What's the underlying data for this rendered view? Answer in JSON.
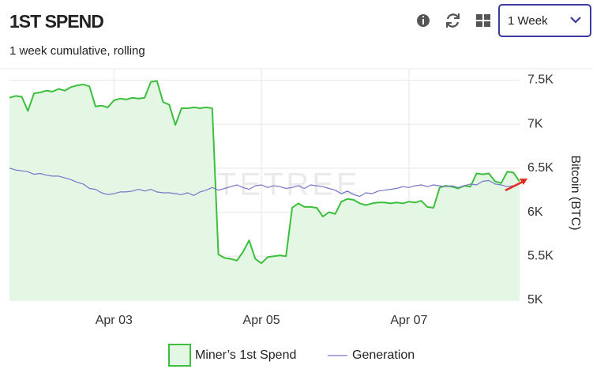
{
  "chart_data": {
    "type": "line",
    "title": "1ST SPEND",
    "subtitle": "1 week cumulative, rolling",
    "range_selector": "1 Week",
    "watermark": "BYTETREE",
    "y_label": "Bitcoin (BTC)",
    "y_axis_side": "right",
    "grid": true,
    "ylim": [
      5000,
      7620
    ],
    "yticks": [
      {
        "value": 5000,
        "label": "5K"
      },
      {
        "value": 5500,
        "label": "5.5K"
      },
      {
        "value": 6000,
        "label": "6K"
      },
      {
        "value": 6500,
        "label": "6.5K"
      },
      {
        "value": 7000,
        "label": "7K"
      },
      {
        "value": 7500,
        "label": "7.5K"
      }
    ],
    "categories": [
      null,
      null,
      null,
      null,
      null,
      null,
      null,
      null,
      null,
      null,
      null,
      null,
      null,
      null,
      null,
      null,
      null,
      "Apr 03",
      null,
      null,
      null,
      null,
      null,
      null,
      null,
      null,
      null,
      null,
      null,
      null,
      null,
      null,
      null,
      null,
      null,
      null,
      null,
      null,
      null,
      null,
      null,
      "Apr 05",
      null,
      null,
      null,
      null,
      null,
      null,
      null,
      null,
      null,
      null,
      null,
      null,
      null,
      null,
      null,
      null,
      null,
      null,
      null,
      null,
      null,
      null,
      null,
      "Apr 07",
      null,
      null,
      null,
      null,
      null,
      null,
      null,
      null,
      null,
      null,
      null,
      null,
      null,
      null,
      null,
      null,
      null,
      null
    ],
    "series": [
      {
        "name": "Miner’s 1st Spend",
        "color": "#3cbf3c",
        "area_fill": "#e4f6e4",
        "legend_marker": "box",
        "values": [
          7300,
          7320,
          7310,
          7150,
          7350,
          7360,
          7380,
          7370,
          7400,
          7380,
          7420,
          7440,
          7450,
          7430,
          7200,
          7210,
          7190,
          7270,
          7290,
          7280,
          7300,
          7290,
          7300,
          7480,
          7490,
          7250,
          7220,
          6990,
          7180,
          7180,
          7190,
          7180,
          7190,
          7180,
          5520,
          5480,
          5470,
          5450,
          5550,
          5680,
          5470,
          5420,
          5490,
          5500,
          5510,
          5500,
          6050,
          6100,
          6060,
          6060,
          6050,
          5950,
          6000,
          5980,
          6120,
          6150,
          6140,
          6100,
          6080,
          6100,
          6110,
          6110,
          6100,
          6110,
          6100,
          6120,
          6110,
          6130,
          6060,
          6050,
          6280,
          6300,
          6290,
          6270,
          6300,
          6290,
          6440,
          6430,
          6440,
          6350,
          6330,
          6460,
          6450,
          6350
        ]
      },
      {
        "name": "Generation",
        "color": "#7676c8",
        "legend_marker": "line",
        "values": [
          6500,
          6480,
          6470,
          6460,
          6430,
          6440,
          6420,
          6410,
          6410,
          6390,
          6370,
          6340,
          6320,
          6270,
          6260,
          6220,
          6200,
          6210,
          6230,
          6230,
          6240,
          6260,
          6240,
          6260,
          6230,
          6220,
          6220,
          6210,
          6200,
          6220,
          6190,
          6230,
          6250,
          6280,
          6250,
          6270,
          6290,
          6310,
          6280,
          6260,
          6300,
          6310,
          6280,
          6300,
          6290,
          6270,
          6280,
          6300,
          6270,
          6310,
          6300,
          6290,
          6270,
          6250,
          6210,
          6240,
          6200,
          6180,
          6220,
          6210,
          6240,
          6250,
          6260,
          6270,
          6290,
          6280,
          6300,
          6310,
          6290,
          6310,
          6300,
          6290,
          6300,
          6280,
          6300,
          6320,
          6310,
          6350,
          6360,
          6320,
          6310,
          6290,
          6300,
          6320
        ]
      }
    ]
  }
}
